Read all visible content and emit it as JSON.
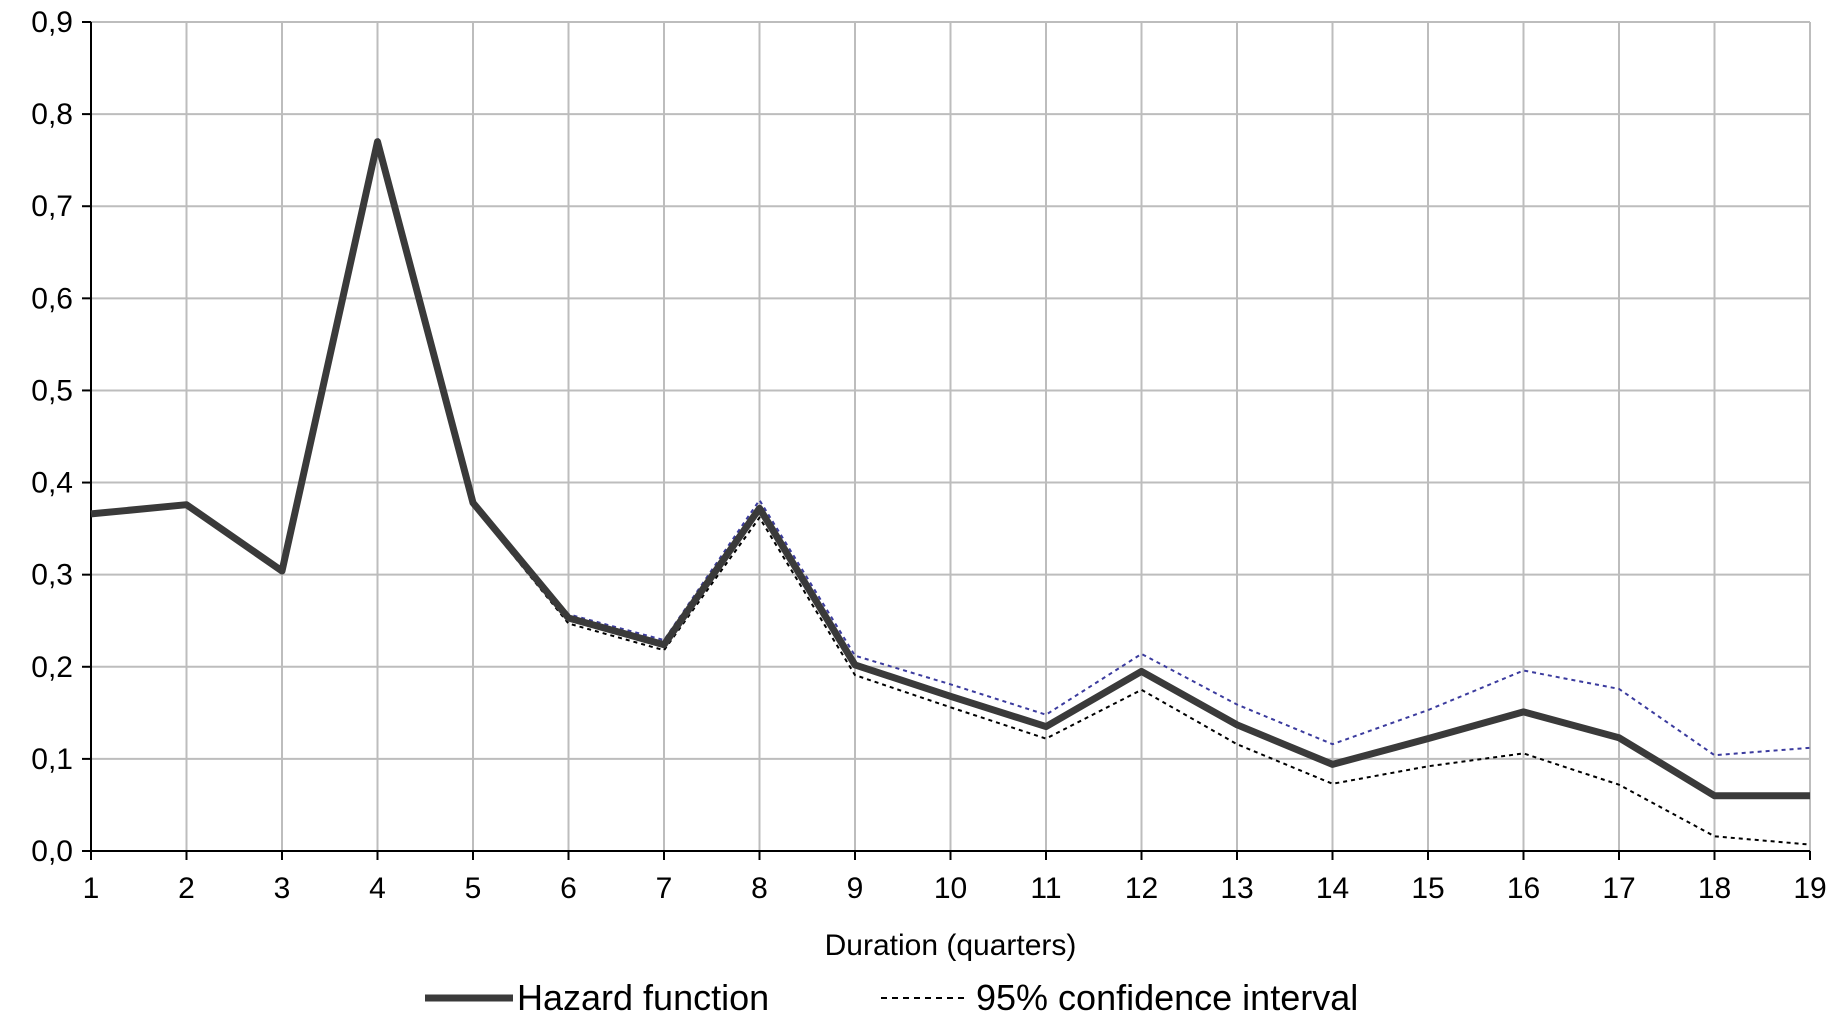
{
  "chart_data": {
    "type": "line",
    "title": "",
    "xlabel": "Duration (quarters)",
    "ylabel": "",
    "x": [
      1,
      2,
      3,
      4,
      5,
      6,
      7,
      8,
      9,
      10,
      11,
      12,
      13,
      14,
      15,
      16,
      17,
      18,
      19
    ],
    "x_tick_labels": [
      "1",
      "2",
      "3",
      "4",
      "5",
      "6",
      "7",
      "8",
      "9",
      "10",
      "11",
      "12",
      "13",
      "14",
      "15",
      "16",
      "17",
      "18",
      "19"
    ],
    "y_tick_labels": [
      "0,0",
      "0,1",
      "0,2",
      "0,3",
      "0,4",
      "0,5",
      "0,6",
      "0,7",
      "0,8",
      "0,9"
    ],
    "ylim": [
      0,
      0.9
    ],
    "xlim": [
      1,
      19
    ],
    "grid": true,
    "legend_position": "bottom",
    "series": [
      {
        "name": "Hazard function",
        "style": "solid",
        "color": "#3a3a3a",
        "values": [
          0.366,
          0.376,
          0.304,
          0.77,
          0.378,
          0.253,
          0.224,
          0.372,
          0.202,
          0.168,
          0.135,
          0.195,
          0.137,
          0.094,
          0.122,
          0.151,
          0.123,
          0.06,
          0.06
        ]
      },
      {
        "name": "95% confidence interval",
        "style": "dotted",
        "color": "#3b3b9e",
        "values": [
          0.368,
          0.378,
          0.306,
          0.775,
          0.381,
          0.257,
          0.229,
          0.381,
          0.212,
          0.181,
          0.148,
          0.214,
          0.159,
          0.116,
          0.153,
          0.196,
          0.176,
          0.104,
          0.112
        ]
      },
      {
        "name": "95% confidence interval",
        "style": "dotted",
        "color": "#000000",
        "values": [
          0.364,
          0.374,
          0.302,
          0.765,
          0.375,
          0.247,
          0.218,
          0.362,
          0.191,
          0.156,
          0.122,
          0.175,
          0.116,
          0.073,
          0.092,
          0.106,
          0.072,
          0.016,
          0.007
        ]
      }
    ],
    "legend": [
      {
        "label": "Hazard function",
        "style": "solid"
      },
      {
        "label": "95% confidence interval",
        "style": "dotted"
      }
    ]
  }
}
